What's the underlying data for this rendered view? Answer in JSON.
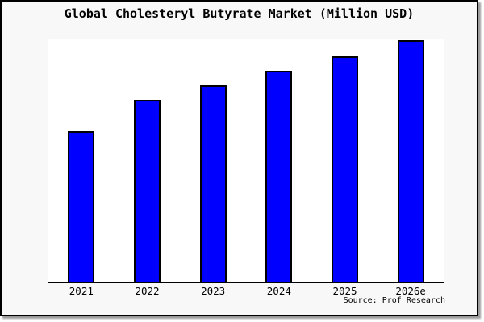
{
  "chart": {
    "title": "Global Cholesteryl Butyrate Market (Million USD)",
    "source_note": "Source: Prof Research",
    "colors": {
      "bar_fill": "#0000ff",
      "bar_border": "#000000",
      "plot_background": "#ffffff",
      "card_background": "#f8f8f8",
      "axis_line": "#000000",
      "text": "#000000"
    }
  },
  "chart_data": {
    "type": "bar",
    "title": "Global Cholesteryl Butyrate Market (Million USD)",
    "categories": [
      "2021",
      "2022",
      "2023",
      "2024",
      "2025",
      "2026e"
    ],
    "values": [
      62.5,
      75.2,
      81.3,
      87.5,
      93.5,
      100
    ],
    "values_note": "No y-axis or data labels shown in image; values are bar heights measured relative to the tallest (2026e) bar = 100",
    "xlabel": "",
    "ylabel": "",
    "ylim": [
      0,
      100
    ],
    "grid": false,
    "legend_position": "none",
    "annotations": [
      "Source: Prof Research"
    ]
  }
}
